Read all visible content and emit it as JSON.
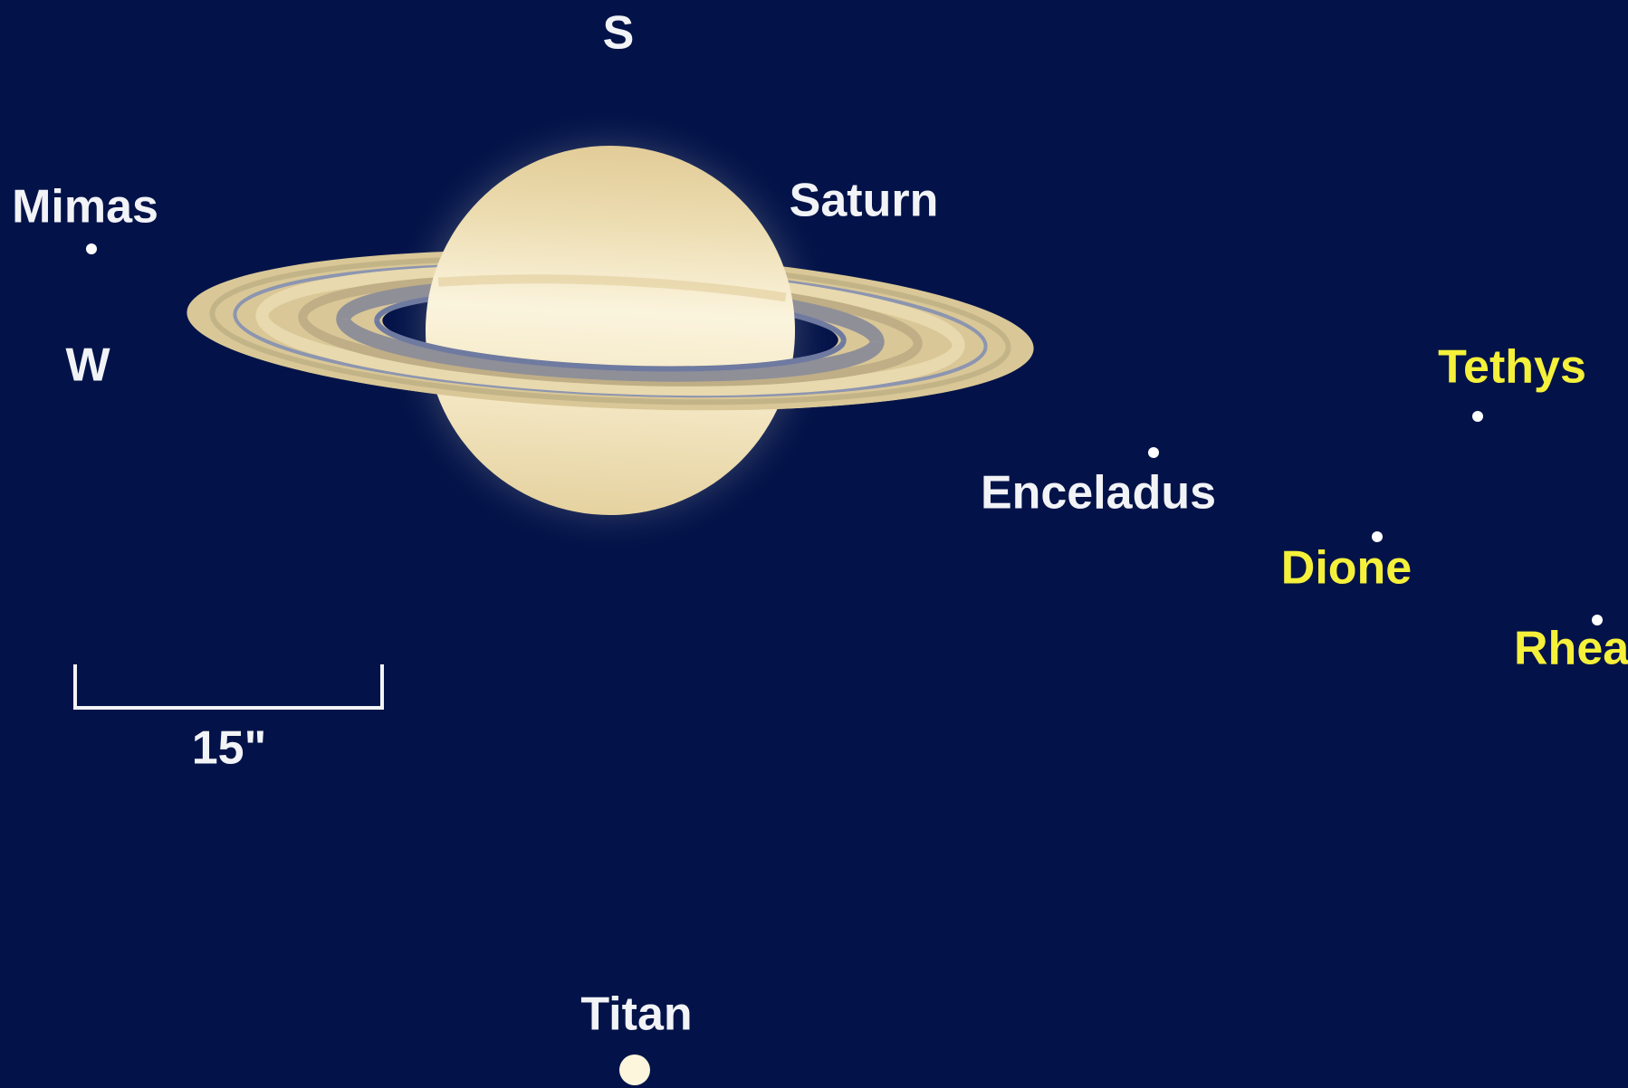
{
  "compass": {
    "south": "S",
    "west": "W"
  },
  "planet": {
    "name": "Saturn"
  },
  "moons": [
    {
      "name": "Mimas"
    },
    {
      "name": "Enceladus"
    },
    {
      "name": "Tethys"
    },
    {
      "name": "Dione"
    },
    {
      "name": "Rhea"
    },
    {
      "name": "Titan"
    }
  ],
  "scale_bar": {
    "label": "15\""
  }
}
